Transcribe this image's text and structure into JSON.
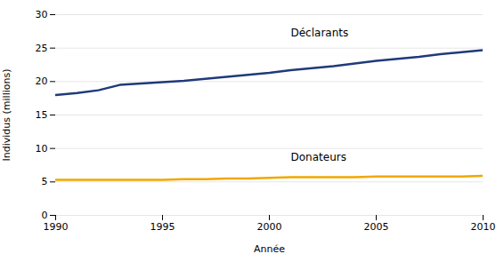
{
  "chart_data": {
    "type": "line",
    "xlabel": "Année",
    "ylabel": "Individus (millions)",
    "x": [
      1990,
      1991,
      1992,
      1993,
      1994,
      1995,
      1996,
      1997,
      1998,
      1999,
      2000,
      2001,
      2002,
      2003,
      2004,
      2005,
      2006,
      2007,
      2008,
      2009,
      2010
    ],
    "series": [
      {
        "name": "Déclarants",
        "color": "#1f3a7a",
        "values": [
          18.0,
          18.3,
          18.7,
          19.5,
          19.7,
          19.9,
          20.1,
          20.4,
          20.7,
          21.0,
          21.3,
          21.7,
          22.0,
          22.3,
          22.7,
          23.1,
          23.4,
          23.7,
          24.1,
          24.4,
          24.7
        ]
      },
      {
        "name": "Donateurs",
        "color": "#f0a800",
        "values": [
          5.3,
          5.3,
          5.3,
          5.3,
          5.3,
          5.3,
          5.4,
          5.4,
          5.5,
          5.5,
          5.6,
          5.7,
          5.7,
          5.7,
          5.7,
          5.8,
          5.8,
          5.8,
          5.8,
          5.8,
          5.9
        ]
      }
    ],
    "annotations": [
      {
        "text": "Déclarants",
        "x": 2001,
        "y": 26.8
      },
      {
        "text": "Donateurs",
        "x": 2001,
        "y": 8.2
      }
    ],
    "xlim": [
      1990,
      2010
    ],
    "ylim": [
      0,
      30
    ],
    "xticks": [
      1990,
      1995,
      2000,
      2005,
      2010
    ],
    "yticks": [
      0,
      5,
      10,
      15,
      20,
      25,
      30
    ],
    "grid": "y"
  }
}
